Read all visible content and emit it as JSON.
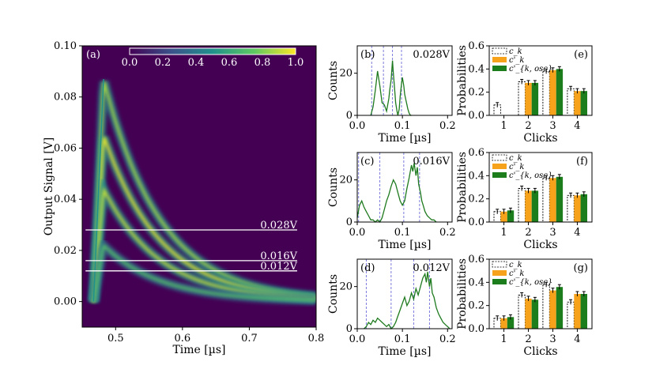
{
  "chart_data": [
    {
      "id": "a",
      "type": "heatmap",
      "panel_label": "(a)",
      "xlabel": "Time [µs]",
      "ylabel": "Output Signal [V]",
      "xlim": [
        0.45,
        0.8
      ],
      "ylim": [
        -0.01,
        0.1
      ],
      "xticks": [
        "0.5",
        "0.6",
        "0.7",
        "0.8"
      ],
      "xtick_values": [
        0.5,
        0.6,
        0.7,
        0.8
      ],
      "yticks": [
        "0.00",
        "0.02",
        "0.04",
        "0.06",
        "0.08",
        "0.10"
      ],
      "ytick_values": [
        0.0,
        0.02,
        0.04,
        0.06,
        0.08,
        0.1
      ],
      "colorbar": {
        "ticks": [
          "0.0",
          "0.2",
          "0.4",
          "0.6",
          "0.8",
          "1.0"
        ],
        "tick_values": [
          0,
          0.2,
          0.4,
          0.6,
          0.8,
          1.0
        ],
        "colormap": [
          "#440154",
          "#3b528b",
          "#21918c",
          "#5ec962",
          "#fde725"
        ]
      },
      "bands": [
        {
          "peak": 0.087,
          "intensity": 0.85
        },
        {
          "peak": 0.065,
          "intensity": 0.95
        },
        {
          "peak": 0.044,
          "intensity": 0.9
        },
        {
          "peak": 0.022,
          "intensity": 0.7
        }
      ],
      "thresholds": [
        {
          "value": 0.028,
          "label": "0.028V"
        },
        {
          "value": 0.016,
          "label": "0.016V"
        },
        {
          "value": 0.012,
          "label": "0.012V"
        }
      ],
      "background_color": "#440154",
      "threshold_color": "#ffffff"
    },
    {
      "id": "b",
      "type": "line",
      "panel_label": "(b)",
      "annotation": "0.028V",
      "xlabel": "Time [µs]",
      "ylabel": "Counts",
      "xlim": [
        0,
        0.21
      ],
      "ylim": [
        0,
        33
      ],
      "xticks": [
        "0.0",
        "0.1",
        "0.2"
      ],
      "xtick_values": [
        0,
        0.1,
        0.2
      ],
      "yticks": [
        "0",
        "20"
      ],
      "ytick_values": [
        0,
        20
      ],
      "x": [
        0.03,
        0.035,
        0.04,
        0.045,
        0.05,
        0.055,
        0.06,
        0.065,
        0.07,
        0.072,
        0.075,
        0.078,
        0.08,
        0.083,
        0.085,
        0.088,
        0.09,
        0.093,
        0.095,
        0.098,
        0.1,
        0.103,
        0.105,
        0.108,
        0.11,
        0.112,
        0.115,
        0.118,
        0.12
      ],
      "y": [
        0,
        4,
        12,
        21,
        14,
        6,
        5,
        2,
        8,
        12,
        17,
        26,
        20,
        12,
        6,
        2,
        0,
        3,
        9,
        15,
        18,
        14,
        10,
        7,
        5,
        3,
        1,
        0,
        0
      ],
      "vlines": [
        0.032,
        0.058,
        0.078,
        0.098
      ],
      "line_color": "#1e7a1e",
      "vline_color": "#7b7bdc"
    },
    {
      "id": "c",
      "type": "line",
      "panel_label": "(c)",
      "annotation": "0.016V",
      "xlabel": "Time [µs]",
      "ylabel": "Counts",
      "xlim": [
        0,
        0.21
      ],
      "ylim": [
        0,
        33
      ],
      "xticks": [
        "0.0",
        "0.1",
        "0.2"
      ],
      "xtick_values": [
        0,
        0.1,
        0.2
      ],
      "yticks": [
        "0",
        "20"
      ],
      "ytick_values": [
        0,
        20
      ],
      "x": [
        0.0,
        0.005,
        0.01,
        0.015,
        0.02,
        0.025,
        0.03,
        0.035,
        0.04,
        0.045,
        0.05,
        0.055,
        0.06,
        0.065,
        0.07,
        0.075,
        0.08,
        0.085,
        0.09,
        0.095,
        0.1,
        0.105,
        0.11,
        0.115,
        0.12,
        0.123,
        0.126,
        0.13,
        0.133,
        0.136,
        0.14,
        0.143,
        0.146,
        0.15,
        0.155,
        0.16,
        0.165,
        0.17,
        0.175
      ],
      "y": [
        2,
        8,
        10,
        7,
        5,
        3,
        1,
        1,
        0,
        1,
        0,
        2,
        6,
        10,
        13,
        17,
        20,
        18,
        14,
        10,
        8,
        10,
        16,
        21,
        27,
        24,
        28,
        22,
        26,
        18,
        14,
        10,
        8,
        5,
        3,
        2,
        1,
        1,
        0
      ],
      "vlines": [
        0.003,
        0.05,
        0.103,
        0.138
      ],
      "line_color": "#1e7a1e",
      "vline_color": "#7b7bdc"
    },
    {
      "id": "d",
      "type": "line",
      "panel_label": "(d)",
      "annotation": "0.012V",
      "xlabel": "Time [µs]",
      "ylabel": "Counts",
      "xlim": [
        0,
        0.21
      ],
      "ylim": [
        0,
        33
      ],
      "xticks": [
        "0.0",
        "0.1",
        "0.2"
      ],
      "xtick_values": [
        0,
        0.1,
        0.2
      ],
      "yticks": [
        "0",
        "20"
      ],
      "ytick_values": [
        0,
        20
      ],
      "x": [
        0.015,
        0.02,
        0.025,
        0.03,
        0.035,
        0.04,
        0.045,
        0.05,
        0.055,
        0.06,
        0.065,
        0.07,
        0.075,
        0.08,
        0.085,
        0.09,
        0.095,
        0.1,
        0.105,
        0.11,
        0.115,
        0.12,
        0.125,
        0.13,
        0.135,
        0.14,
        0.145,
        0.15,
        0.153,
        0.156,
        0.16,
        0.163,
        0.166,
        0.17,
        0.175,
        0.18,
        0.185,
        0.19,
        0.195,
        0.2,
        0.205
      ],
      "y": [
        0,
        1,
        3,
        2,
        4,
        3,
        5,
        4,
        3,
        2,
        1,
        2,
        0,
        1,
        3,
        6,
        9,
        12,
        15,
        11,
        13,
        17,
        14,
        19,
        16,
        20,
        24,
        26,
        22,
        27,
        20,
        24,
        17,
        15,
        10,
        7,
        5,
        3,
        2,
        1,
        0
      ],
      "vlines": [
        0.02,
        0.075,
        0.125,
        0.16
      ],
      "line_color": "#1e7a1e",
      "vline_color": "#7b7bdc"
    },
    {
      "id": "e",
      "type": "bar",
      "panel_label": "(e)",
      "xlabel": "Clicks",
      "ylabel": "Probabilities",
      "categories": [
        "1",
        "2",
        "3",
        "4"
      ],
      "ylim": [
        0,
        0.6
      ],
      "yticks": [
        "0.0",
        "0.2",
        "0.4",
        "0.6"
      ],
      "ytick_values": [
        0,
        0.2,
        0.4,
        0.6
      ],
      "legend": [
        "c_k",
        "c'_k",
        "c'_{k, osc}"
      ],
      "series": [
        {
          "name": "c_k",
          "values": [
            0.09,
            0.29,
            0.38,
            0.23
          ],
          "color": "#ffffff",
          "style": "dashed"
        },
        {
          "name": "c'_k",
          "values": [
            0.0,
            0.28,
            0.39,
            0.21
          ],
          "color": "#f7a21b"
        },
        {
          "name": "c'_k,osc",
          "values": [
            0.0,
            0.28,
            0.4,
            0.21
          ],
          "color": "#1b7d1b"
        }
      ]
    },
    {
      "id": "f",
      "type": "bar",
      "panel_label": "(f)",
      "xlabel": "Clicks",
      "ylabel": "Probabilities",
      "categories": [
        "1",
        "2",
        "3",
        "4"
      ],
      "ylim": [
        0,
        0.6
      ],
      "yticks": [
        "0.0",
        "0.2",
        "0.4",
        "0.6"
      ],
      "ytick_values": [
        0,
        0.2,
        0.4,
        0.6
      ],
      "legend": [
        "c_k",
        "c'_k",
        "c'_{k, osc}"
      ],
      "series": [
        {
          "name": "c_k",
          "values": [
            0.09,
            0.29,
            0.38,
            0.23
          ],
          "color": "#ffffff",
          "style": "dashed"
        },
        {
          "name": "c'_k",
          "values": [
            0.09,
            0.27,
            0.38,
            0.23
          ],
          "color": "#f7a21b"
        },
        {
          "name": "c'_k,osc",
          "values": [
            0.1,
            0.27,
            0.39,
            0.24
          ],
          "color": "#1b7d1b"
        }
      ]
    },
    {
      "id": "g",
      "type": "bar",
      "panel_label": "(g)",
      "xlabel": "Clicks",
      "ylabel": "Probabilities",
      "categories": [
        "1",
        "2",
        "3",
        "4"
      ],
      "ylim": [
        0,
        0.6
      ],
      "yticks": [
        "0.0",
        "0.2",
        "0.4",
        "0.6"
      ],
      "ytick_values": [
        0,
        0.2,
        0.4,
        0.6
      ],
      "legend": [
        "c_k",
        "c'_k",
        "c'_{k, osc}"
      ],
      "series": [
        {
          "name": "c_k",
          "values": [
            0.09,
            0.29,
            0.38,
            0.23
          ],
          "color": "#ffffff",
          "style": "dashed"
        },
        {
          "name": "c'_k",
          "values": [
            0.09,
            0.26,
            0.33,
            0.3
          ],
          "color": "#f7a21b"
        },
        {
          "name": "c'_k,osc",
          "values": [
            0.1,
            0.25,
            0.36,
            0.3
          ],
          "color": "#1b7d1b"
        }
      ]
    }
  ]
}
